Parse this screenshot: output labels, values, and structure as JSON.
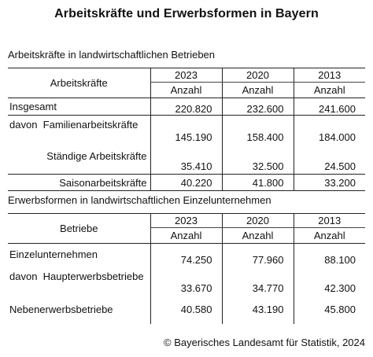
{
  "title": "Arbeitskräfte und Erwerbsformen in Bayern",
  "section1": {
    "subtitle": "Arbeitskräfte in landwirtschaftlichen Betrieben",
    "header_label": "Arbeitskräfte",
    "years": [
      "2023",
      "2020",
      "2013"
    ],
    "unit": "Anzahl",
    "rows": [
      {
        "label": "Insgesamt",
        "values": [
          "220.820",
          "232.600",
          "241.600"
        ]
      },
      {
        "prefix": "davon",
        "label": "Familienarbeitskräfte",
        "values": [
          "145.190",
          "158.400",
          "184.000"
        ]
      },
      {
        "label": "Ständige Arbeitskräfte",
        "values": [
          "35.410",
          "32.500",
          "24.500"
        ]
      },
      {
        "label": "Saisonarbeitskräfte",
        "values": [
          "40.220",
          "41.800",
          "33.200"
        ]
      }
    ]
  },
  "section2": {
    "subtitle": "Erwerbsformen in landwirtschaftlichen Einzelunternehmen",
    "header_label": "Betriebe",
    "years": [
      "2023",
      "2020",
      "2013"
    ],
    "unit": "Anzahl",
    "rows": [
      {
        "label": "Einzelunternehmen",
        "values": [
          "74.250",
          "77.960",
          "88.100"
        ]
      },
      {
        "prefix": "davon",
        "label": "Haupterwerbsbetriebe",
        "values": [
          "33.670",
          "34.770",
          "42.300"
        ]
      },
      {
        "label": "Nebenerwerbsbetriebe",
        "values": [
          "40.580",
          "43.190",
          "45.800"
        ]
      }
    ]
  },
  "footer": "© Bayerisches Landesamt für Statistik, 2024"
}
